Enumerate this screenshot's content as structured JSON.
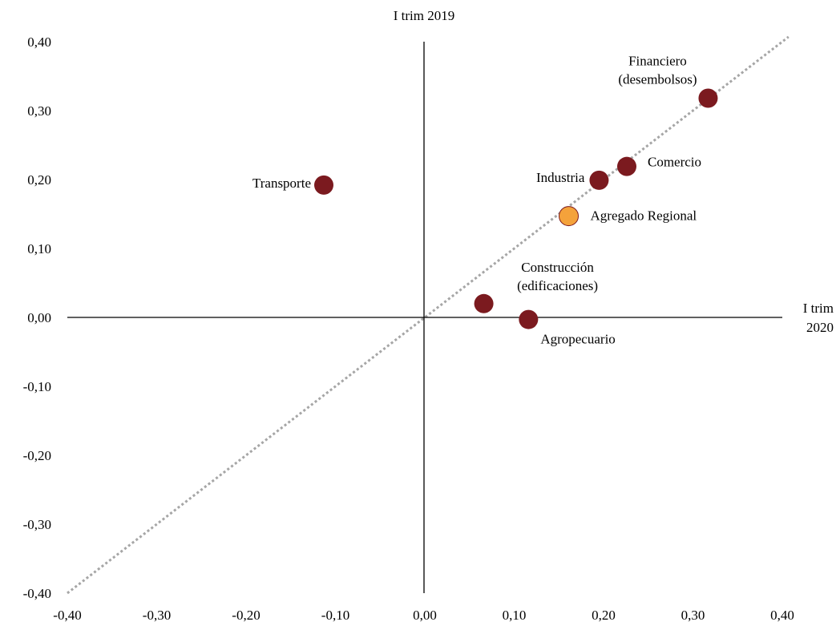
{
  "chart_data": {
    "type": "scatter",
    "title": "",
    "xlabel_lines": [
      "I trim",
      "2020"
    ],
    "ylabel": "I trim 2019",
    "xlim": [
      -0.4,
      0.4
    ],
    "ylim": [
      -0.4,
      0.4
    ],
    "x_ticks": [
      "-0,40",
      "-0,30",
      "-0,20",
      "-0,10",
      "0,00",
      "0,10",
      "0,20",
      "0,30",
      "0,40"
    ],
    "y_ticks": [
      "0,40",
      "0,30",
      "0,20",
      "0,10",
      "0,00",
      "-0,10",
      "-0,20",
      "-0,30",
      "-0,40"
    ],
    "grid": false,
    "reference_line": {
      "type": "identity",
      "style": "dotted",
      "color": "#A6A6A6"
    },
    "colors": {
      "sector": "#7B1A1F",
      "regional": "#F4A23B",
      "axis": "#000000"
    },
    "points": [
      {
        "id": "transporte",
        "label_lines": [
          "Transporte"
        ],
        "x": -0.113,
        "y": 0.192,
        "color": "#7B1A1F"
      },
      {
        "id": "industria",
        "label_lines": [
          "Industria"
        ],
        "x": 0.195,
        "y": 0.199,
        "color": "#7B1A1F"
      },
      {
        "id": "comercio",
        "label_lines": [
          "Comercio"
        ],
        "x": 0.226,
        "y": 0.219,
        "color": "#7B1A1F"
      },
      {
        "id": "financiero",
        "label_lines": [
          "Financiero",
          "(desembolsos)"
        ],
        "x": 0.317,
        "y": 0.318,
        "color": "#7B1A1F"
      },
      {
        "id": "agregado",
        "label_lines": [
          "Agregado  Regional"
        ],
        "x": 0.161,
        "y": 0.147,
        "color": "#F4A23B"
      },
      {
        "id": "construccion",
        "label_lines": [
          "Construcción",
          "(edificaciones)"
        ],
        "x": 0.066,
        "y": 0.02,
        "color": "#7B1A1F"
      },
      {
        "id": "agropecuario",
        "label_lines": [
          "Agropecuario"
        ],
        "x": 0.116,
        "y": -0.003,
        "color": "#7B1A1F"
      }
    ]
  }
}
